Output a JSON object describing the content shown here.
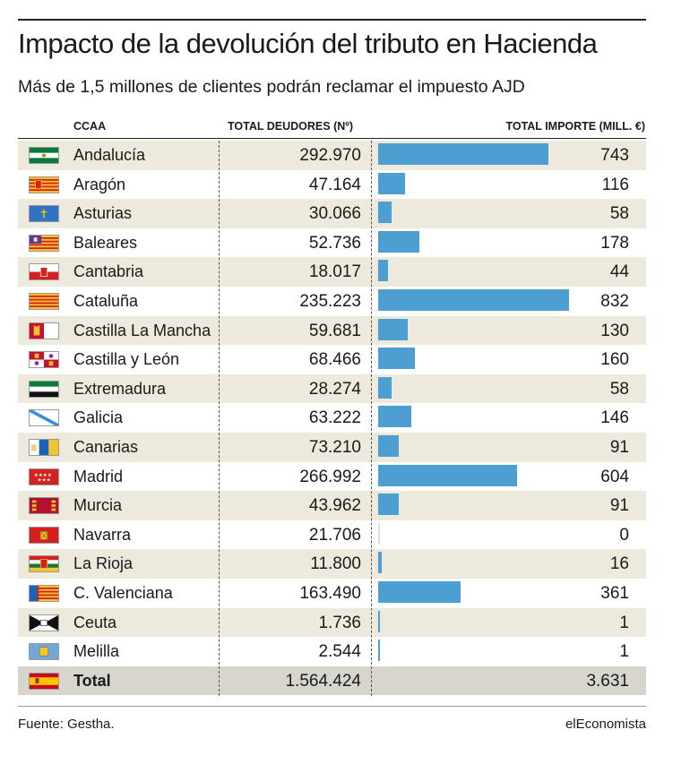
{
  "header": {
    "title": "Impacto de la devolución del tributo en Hacienda",
    "subtitle": "Más de 1,5 millones de clientes podrán reclamar el impuesto AJD"
  },
  "columns": {
    "ccaa": "CCAA",
    "deudores": "TOTAL DEUDORES (Nº)",
    "importe": "TOTAL IMPORTE (MILL. €)"
  },
  "footer": {
    "source": "Fuente: Gestha.",
    "brand": "elEconomista"
  },
  "colors": {
    "bar": "#4c9fd0",
    "row_shade": "#ede9dc",
    "total_row": "#d8d6cc"
  },
  "chart_data": {
    "type": "table",
    "columns": [
      "CCAA",
      "TOTAL DEUDORES (Nº)",
      "TOTAL IMPORTE (MILL. €)"
    ],
    "bar_column": "TOTAL IMPORTE (MILL. €)",
    "bar_max": 832,
    "rows": [
      {
        "ccaa": "Andalucía",
        "deudores": "292.970",
        "importe": 743,
        "importe_label": "743",
        "flag": "andalucia-flag"
      },
      {
        "ccaa": "Aragón",
        "deudores": "47.164",
        "importe": 116,
        "importe_label": "116",
        "flag": "aragon-flag"
      },
      {
        "ccaa": "Asturias",
        "deudores": "30.066",
        "importe": 58,
        "importe_label": "58",
        "flag": "asturias-flag"
      },
      {
        "ccaa": "Baleares",
        "deudores": "52.736",
        "importe": 178,
        "importe_label": "178",
        "flag": "baleares-flag"
      },
      {
        "ccaa": "Cantabria",
        "deudores": "18.017",
        "importe": 44,
        "importe_label": "44",
        "flag": "cantabria-flag"
      },
      {
        "ccaa": "Cataluña",
        "deudores": "235.223",
        "importe": 832,
        "importe_label": "832",
        "flag": "cataluna-flag"
      },
      {
        "ccaa": "Castilla La Mancha",
        "deudores": "59.681",
        "importe": 130,
        "importe_label": "130",
        "flag": "castilla-la-mancha-flag"
      },
      {
        "ccaa": "Castilla y León",
        "deudores": "68.466",
        "importe": 160,
        "importe_label": "160",
        "flag": "castilla-y-leon-flag"
      },
      {
        "ccaa": "Extremadura",
        "deudores": "28.274",
        "importe": 58,
        "importe_label": "58",
        "flag": "extremadura-flag"
      },
      {
        "ccaa": "Galicia",
        "deudores": "63.222",
        "importe": 146,
        "importe_label": "146",
        "flag": "galicia-flag"
      },
      {
        "ccaa": "Canarias",
        "deudores": "73.210",
        "importe": 91,
        "importe_label": "91",
        "flag": "canarias-flag"
      },
      {
        "ccaa": "Madrid",
        "deudores": "266.992",
        "importe": 604,
        "importe_label": "604",
        "flag": "madrid-flag"
      },
      {
        "ccaa": "Murcia",
        "deudores": "43.962",
        "importe": 91,
        "importe_label": "91",
        "flag": "murcia-flag"
      },
      {
        "ccaa": "Navarra",
        "deudores": "21.706",
        "importe": 0,
        "importe_label": "0",
        "flag": "navarra-flag"
      },
      {
        "ccaa": "La Rioja",
        "deudores": "11.800",
        "importe": 16,
        "importe_label": "16",
        "flag": "la-rioja-flag"
      },
      {
        "ccaa": "C. Valenciana",
        "deudores": "163.490",
        "importe": 361,
        "importe_label": "361",
        "flag": "valenciana-flag"
      },
      {
        "ccaa": "Ceuta",
        "deudores": "1.736",
        "importe": 1,
        "importe_label": "1",
        "flag": "ceuta-flag"
      },
      {
        "ccaa": "Melilla",
        "deudores": "2.544",
        "importe": 1,
        "importe_label": "1",
        "flag": "melilla-flag"
      }
    ],
    "total": {
      "ccaa": "Total",
      "deudores": "1.564.424",
      "importe": 3631,
      "importe_label": "3.631",
      "flag": "spain-flag"
    }
  }
}
